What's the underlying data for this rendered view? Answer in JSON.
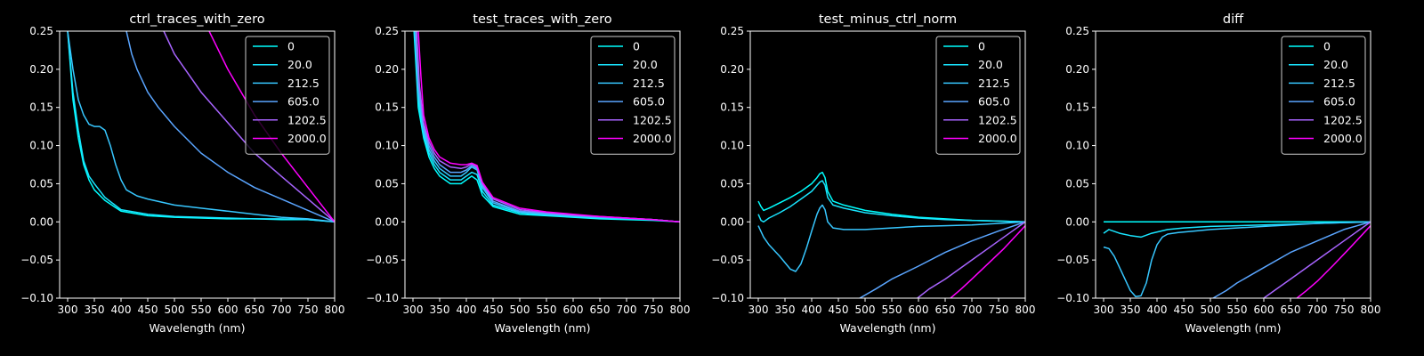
{
  "chart_data": [
    {
      "type": "line",
      "title": "ctrl_traces_with_zero",
      "xlabel": "Wavelength (nm)",
      "ylabel": "",
      "xlim": [
        285,
        800
      ],
      "ylim": [
        -0.1,
        0.25
      ],
      "xticks": [
        300,
        350,
        400,
        450,
        500,
        550,
        600,
        650,
        700,
        750,
        800
      ],
      "yticks": [
        -0.1,
        -0.05,
        0.0,
        0.05,
        0.1,
        0.15,
        0.2,
        0.25
      ],
      "legend": "top-right",
      "series": [
        {
          "name": "0",
          "color": "#00ffff",
          "x": [
            300,
            310,
            320,
            330,
            340,
            350,
            370,
            400,
            450,
            500,
            550,
            600,
            650,
            700,
            750,
            800
          ],
          "y": [
            0.25,
            0.16,
            0.11,
            0.075,
            0.055,
            0.042,
            0.028,
            0.014,
            0.008,
            0.006,
            0.005,
            0.004,
            0.004,
            0.003,
            0.003,
            0.0
          ]
        },
        {
          "name": "20.0",
          "color": "#19e5ff",
          "x": [
            300,
            310,
            320,
            330,
            340,
            350,
            370,
            400,
            450,
            500,
            550,
            600,
            650,
            700,
            750,
            800
          ],
          "y": [
            0.25,
            0.17,
            0.12,
            0.08,
            0.06,
            0.05,
            0.032,
            0.016,
            0.01,
            0.007,
            0.006,
            0.005,
            0.004,
            0.004,
            0.003,
            0.0
          ]
        },
        {
          "name": "212.5",
          "color": "#37c7ff",
          "x": [
            300,
            310,
            320,
            330,
            340,
            350,
            360,
            370,
            380,
            390,
            400,
            410,
            430,
            450,
            500,
            550,
            600,
            650,
            700,
            750,
            800
          ],
          "y": [
            0.25,
            0.2,
            0.16,
            0.14,
            0.128,
            0.125,
            0.125,
            0.12,
            0.1,
            0.075,
            0.055,
            0.042,
            0.034,
            0.03,
            0.022,
            0.018,
            0.014,
            0.01,
            0.006,
            0.004,
            0.0
          ]
        },
        {
          "name": "605.0",
          "color": "#5aa5ff",
          "x": [
            410,
            420,
            430,
            450,
            470,
            500,
            550,
            600,
            650,
            700,
            750,
            800
          ],
          "y": [
            0.25,
            0.22,
            0.2,
            0.17,
            0.15,
            0.125,
            0.09,
            0.065,
            0.045,
            0.03,
            0.015,
            0.0
          ]
        },
        {
          "name": "1202.5",
          "color": "#a864ff",
          "x": [
            480,
            500,
            550,
            600,
            650,
            700,
            750,
            800
          ],
          "y": [
            0.25,
            0.22,
            0.17,
            0.13,
            0.09,
            0.06,
            0.03,
            0.0
          ]
        },
        {
          "name": "2000.0",
          "color": "#ff00ff",
          "x": [
            565,
            600,
            650,
            700,
            750,
            800
          ],
          "y": [
            0.25,
            0.2,
            0.14,
            0.09,
            0.045,
            0.0
          ]
        }
      ]
    },
    {
      "type": "line",
      "title": "test_traces_with_zero",
      "xlabel": "Wavelength (nm)",
      "ylabel": "",
      "xlim": [
        285,
        800
      ],
      "ylim": [
        -0.1,
        0.25
      ],
      "xticks": [
        300,
        350,
        400,
        450,
        500,
        550,
        600,
        650,
        700,
        750,
        800
      ],
      "yticks": [
        -0.1,
        -0.05,
        0.0,
        0.05,
        0.1,
        0.15,
        0.2,
        0.25
      ],
      "legend": "top-right",
      "series": [
        {
          "name": "0",
          "color": "#00ffff",
          "x": [
            302,
            310,
            320,
            330,
            340,
            350,
            370,
            390,
            400,
            410,
            420,
            430,
            450,
            500,
            550,
            600,
            650,
            700,
            750,
            800
          ],
          "y": [
            0.25,
            0.15,
            0.11,
            0.085,
            0.07,
            0.06,
            0.05,
            0.05,
            0.055,
            0.06,
            0.055,
            0.035,
            0.02,
            0.01,
            0.008,
            0.006,
            0.004,
            0.003,
            0.002,
            0.0
          ]
        },
        {
          "name": "20.0",
          "color": "#19e5ff",
          "x": [
            303,
            310,
            320,
            330,
            340,
            350,
            370,
            390,
            400,
            410,
            420,
            430,
            450,
            500,
            550,
            600,
            650,
            700,
            750,
            800
          ],
          "y": [
            0.25,
            0.16,
            0.115,
            0.09,
            0.075,
            0.065,
            0.055,
            0.055,
            0.06,
            0.065,
            0.062,
            0.04,
            0.022,
            0.012,
            0.009,
            0.007,
            0.005,
            0.004,
            0.003,
            0.0
          ]
        },
        {
          "name": "212.5",
          "color": "#37c7ff",
          "x": [
            304,
            310,
            320,
            330,
            340,
            350,
            370,
            390,
            400,
            410,
            420,
            430,
            450,
            500,
            550,
            600,
            650,
            700,
            750,
            800
          ],
          "y": [
            0.25,
            0.17,
            0.12,
            0.095,
            0.08,
            0.07,
            0.06,
            0.06,
            0.065,
            0.072,
            0.068,
            0.045,
            0.025,
            0.013,
            0.01,
            0.008,
            0.006,
            0.004,
            0.003,
            0.0
          ]
        },
        {
          "name": "605.0",
          "color": "#5aa5ff",
          "x": [
            305,
            310,
            320,
            330,
            340,
            350,
            370,
            390,
            400,
            410,
            420,
            430,
            450,
            500,
            550,
            600,
            650,
            700,
            750,
            800
          ],
          "y": [
            0.25,
            0.18,
            0.125,
            0.1,
            0.085,
            0.075,
            0.065,
            0.065,
            0.068,
            0.074,
            0.07,
            0.048,
            0.027,
            0.014,
            0.011,
            0.008,
            0.006,
            0.005,
            0.003,
            0.0
          ]
        },
        {
          "name": "1202.5",
          "color": "#a864ff",
          "x": [
            307,
            312,
            320,
            330,
            340,
            350,
            370,
            390,
            400,
            410,
            420,
            430,
            450,
            500,
            550,
            600,
            650,
            700,
            750,
            800
          ],
          "y": [
            0.25,
            0.18,
            0.13,
            0.105,
            0.09,
            0.08,
            0.072,
            0.07,
            0.072,
            0.076,
            0.072,
            0.05,
            0.03,
            0.016,
            0.012,
            0.009,
            0.007,
            0.005,
            0.003,
            0.0
          ]
        },
        {
          "name": "2000.0",
          "color": "#ff00ff",
          "x": [
            310,
            315,
            320,
            330,
            340,
            350,
            370,
            390,
            400,
            410,
            420,
            430,
            450,
            500,
            550,
            600,
            650,
            700,
            750,
            800
          ],
          "y": [
            0.25,
            0.19,
            0.14,
            0.11,
            0.095,
            0.085,
            0.077,
            0.075,
            0.075,
            0.077,
            0.074,
            0.052,
            0.032,
            0.018,
            0.013,
            0.01,
            0.007,
            0.005,
            0.003,
            0.0
          ]
        }
      ]
    },
    {
      "type": "line",
      "title": "test_minus_ctrl_norm",
      "xlabel": "Wavelength (nm)",
      "ylabel": "",
      "xlim": [
        285,
        800
      ],
      "ylim": [
        -0.1,
        0.25
      ],
      "xticks": [
        300,
        350,
        400,
        450,
        500,
        550,
        600,
        650,
        700,
        750,
        800
      ],
      "yticks": [
        -0.1,
        -0.05,
        0.0,
        0.05,
        0.1,
        0.15,
        0.2,
        0.25
      ],
      "legend": "top-right",
      "series": [
        {
          "name": "0",
          "color": "#00ffff",
          "x": [
            300,
            305,
            310,
            320,
            340,
            360,
            380,
            400,
            410,
            415,
            420,
            425,
            430,
            440,
            460,
            500,
            550,
            600,
            650,
            700,
            750,
            800
          ],
          "y": [
            0.027,
            0.02,
            0.015,
            0.018,
            0.025,
            0.032,
            0.04,
            0.05,
            0.058,
            0.063,
            0.065,
            0.058,
            0.04,
            0.027,
            0.022,
            0.015,
            0.01,
            0.006,
            0.004,
            0.002,
            0.001,
            0.0
          ]
        },
        {
          "name": "20.0",
          "color": "#19e5ff",
          "x": [
            300,
            305,
            310,
            320,
            340,
            360,
            380,
            400,
            410,
            415,
            420,
            425,
            430,
            440,
            460,
            500,
            550,
            600,
            650,
            700,
            750,
            800
          ],
          "y": [
            0.01,
            0.002,
            0.0,
            0.005,
            0.012,
            0.02,
            0.03,
            0.04,
            0.048,
            0.052,
            0.054,
            0.048,
            0.032,
            0.022,
            0.018,
            0.012,
            0.008,
            0.005,
            0.003,
            0.002,
            0.001,
            0.0
          ]
        },
        {
          "name": "212.5",
          "color": "#37c7ff",
          "x": [
            300,
            310,
            320,
            340,
            360,
            370,
            380,
            390,
            400,
            410,
            415,
            420,
            425,
            430,
            440,
            460,
            500,
            550,
            600,
            650,
            700,
            750,
            800
          ],
          "y": [
            -0.005,
            -0.02,
            -0.03,
            -0.045,
            -0.062,
            -0.065,
            -0.055,
            -0.035,
            -0.012,
            0.01,
            0.018,
            0.022,
            0.016,
            0.0,
            -0.008,
            -0.01,
            -0.01,
            -0.008,
            -0.006,
            -0.005,
            -0.004,
            -0.002,
            0.0
          ]
        },
        {
          "name": "605.0",
          "color": "#5aa5ff",
          "x": [
            490,
            520,
            550,
            600,
            650,
            700,
            750,
            800
          ],
          "y": [
            -0.1,
            -0.088,
            -0.075,
            -0.058,
            -0.04,
            -0.025,
            -0.012,
            0.0
          ]
        },
        {
          "name": "1202.5",
          "color": "#a864ff",
          "x": [
            598,
            620,
            650,
            700,
            750,
            800
          ],
          "y": [
            -0.1,
            -0.088,
            -0.075,
            -0.05,
            -0.025,
            0.0
          ]
        },
        {
          "name": "2000.0",
          "color": "#ff00ff",
          "x": [
            660,
            680,
            700,
            730,
            760,
            800
          ],
          "y": [
            -0.1,
            -0.088,
            -0.075,
            -0.055,
            -0.035,
            -0.005
          ]
        }
      ]
    },
    {
      "type": "line",
      "title": "diff",
      "xlabel": "Wavelength (nm)",
      "ylabel": "",
      "xlim": [
        285,
        800
      ],
      "ylim": [
        -0.1,
        0.25
      ],
      "xticks": [
        300,
        350,
        400,
        450,
        500,
        550,
        600,
        650,
        700,
        750,
        800
      ],
      "yticks": [
        -0.1,
        -0.05,
        0.0,
        0.05,
        0.1,
        0.15,
        0.2,
        0.25
      ],
      "legend": "top-right",
      "series": [
        {
          "name": "0",
          "color": "#00ffff",
          "x": [
            300,
            800
          ],
          "y": [
            0.0,
            0.0
          ]
        },
        {
          "name": "20.0",
          "color": "#19e5ff",
          "x": [
            300,
            310,
            330,
            350,
            370,
            390,
            420,
            450,
            500,
            550,
            600,
            650,
            700,
            750,
            800
          ],
          "y": [
            -0.015,
            -0.01,
            -0.015,
            -0.018,
            -0.02,
            -0.015,
            -0.01,
            -0.008,
            -0.006,
            -0.005,
            -0.004,
            -0.003,
            -0.002,
            -0.001,
            0.0
          ]
        },
        {
          "name": "212.5",
          "color": "#37c7ff",
          "x": [
            300,
            310,
            320,
            330,
            340,
            350,
            360,
            370,
            380,
            390,
            400,
            410,
            420,
            440,
            470,
            500,
            550,
            600,
            650,
            700,
            750,
            800
          ],
          "y": [
            -0.033,
            -0.035,
            -0.045,
            -0.06,
            -0.075,
            -0.09,
            -0.098,
            -0.097,
            -0.08,
            -0.05,
            -0.03,
            -0.02,
            -0.016,
            -0.014,
            -0.012,
            -0.01,
            -0.008,
            -0.006,
            -0.004,
            -0.002,
            -0.001,
            0.0
          ]
        },
        {
          "name": "605.0",
          "color": "#5aa5ff",
          "x": [
            505,
            530,
            550,
            600,
            650,
            700,
            750,
            800
          ],
          "y": [
            -0.1,
            -0.09,
            -0.08,
            -0.06,
            -0.04,
            -0.025,
            -0.01,
            0.0
          ]
        },
        {
          "name": "1202.5",
          "color": "#a864ff",
          "x": [
            600,
            620,
            650,
            700,
            750,
            800
          ],
          "y": [
            -0.1,
            -0.09,
            -0.075,
            -0.05,
            -0.025,
            0.0
          ]
        },
        {
          "name": "2000.0",
          "color": "#ff00ff",
          "x": [
            662,
            680,
            700,
            730,
            760,
            800
          ],
          "y": [
            -0.1,
            -0.09,
            -0.078,
            -0.057,
            -0.035,
            -0.005
          ]
        }
      ]
    }
  ]
}
